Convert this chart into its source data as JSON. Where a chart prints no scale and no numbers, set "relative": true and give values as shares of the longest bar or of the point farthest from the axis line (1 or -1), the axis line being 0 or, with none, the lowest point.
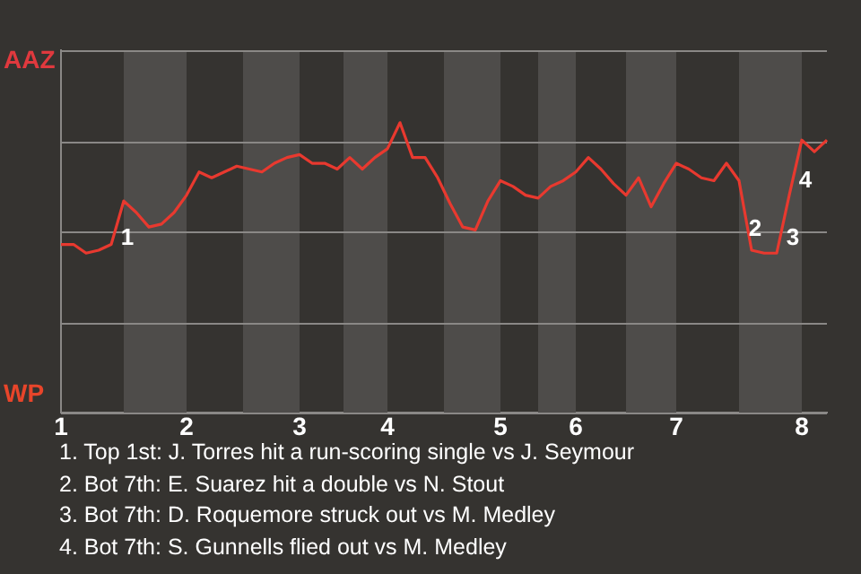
{
  "chart_data": {
    "type": "line",
    "categories": [
      "1",
      null,
      null,
      null,
      null,
      null,
      null,
      null,
      null,
      null,
      "2",
      null,
      null,
      null,
      null,
      null,
      null,
      null,
      null,
      "3",
      null,
      null,
      null,
      null,
      null,
      null,
      "4",
      null,
      null,
      null,
      null,
      null,
      null,
      null,
      null,
      "5",
      null,
      null,
      null,
      null,
      null,
      "6",
      null,
      null,
      null,
      null,
      null,
      null,
      null,
      "7",
      null,
      null,
      null,
      null,
      null,
      null,
      null,
      null,
      null,
      "8",
      null,
      null
    ],
    "series": [
      {
        "color": "#e8392f",
        "values": [
          0.58,
          0.58,
          0.55,
          0.56,
          0.58,
          0.73,
          0.69,
          0.64,
          0.65,
          0.69,
          0.75,
          0.83,
          0.81,
          0.83,
          0.85,
          0.84,
          0.83,
          0.86,
          0.88,
          0.89,
          0.86,
          0.86,
          0.84,
          0.88,
          0.84,
          0.88,
          0.91,
          1,
          0.88,
          0.88,
          0.81,
          0.72,
          0.64,
          0.63,
          0.73,
          0.8,
          0.78,
          0.75,
          0.74,
          0.78,
          0.8,
          0.83,
          0.88,
          0.84,
          0.79,
          0.75,
          0.81,
          0.71,
          0.79,
          0.86,
          0.84,
          0.81,
          0.8,
          0.86,
          0.8,
          0.56,
          0.55,
          0.55,
          0.75,
          0.94,
          0.9,
          0.94
        ]
      }
    ],
    "relative": true,
    "grid": "y",
    "legend": false,
    "annotations": [
      "AAZ",
      "WP",
      "1",
      "2",
      "3",
      "4",
      "1. Top 1st: J. Torres hit a run-scoring single vs J. Seymour",
      "2. Bot 7th: E. Suarez hit a double vs N. Stout",
      "3. Bot 7th: D. Roquemore struck out vs M. Medley",
      "4. Bot 7th: S. Gunnells flied out vs M. Medley"
    ]
  }
}
